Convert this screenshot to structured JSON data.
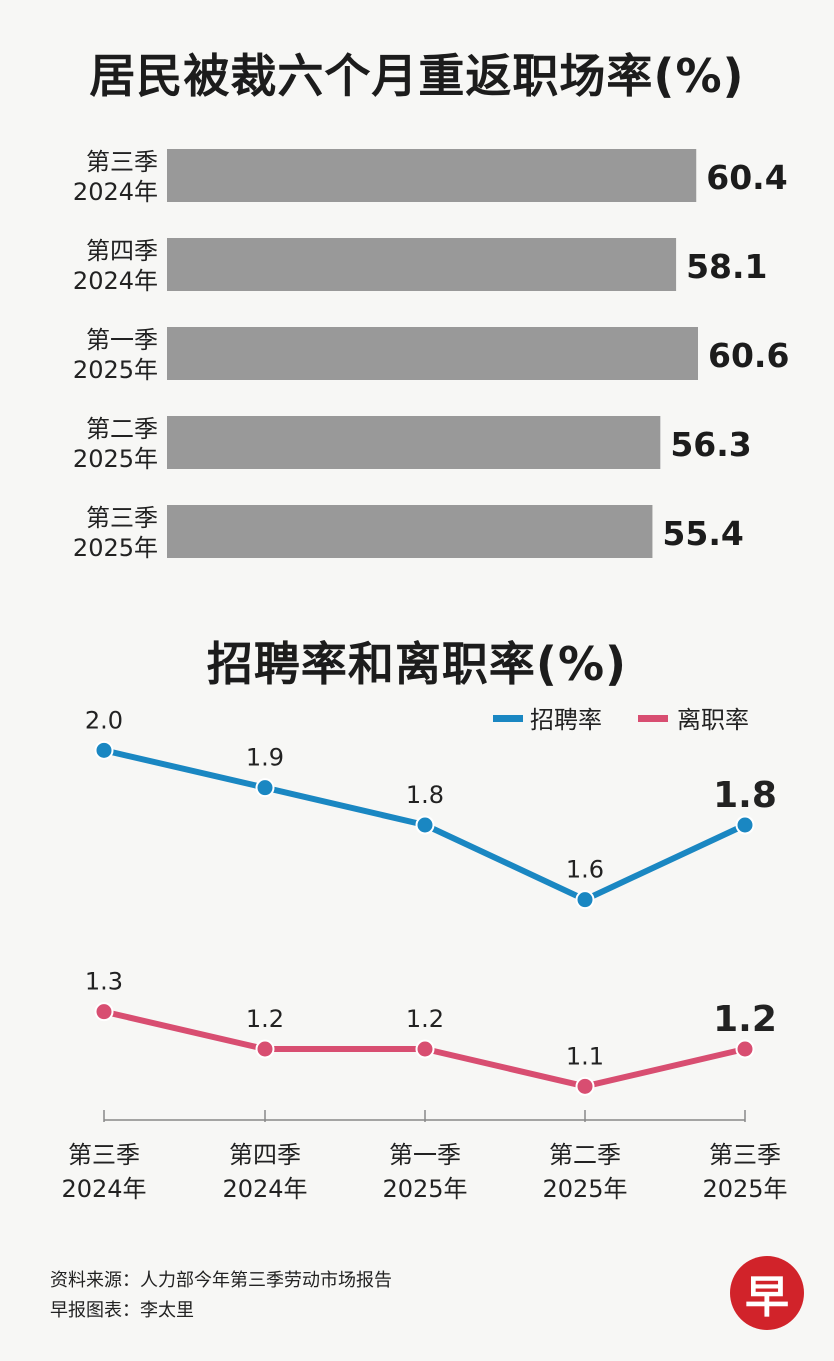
{
  "colors": {
    "bar": "#999999",
    "hire": "#1a87c2",
    "leave": "#d84e71",
    "axis": "#888888",
    "logo_bg": "#d1232a"
  },
  "chart_data": [
    {
      "type": "bar",
      "orientation": "horizontal",
      "title": "居民被裁六个月重返职场率(%)",
      "categories": [
        [
          "第三季",
          "2024年"
        ],
        [
          "第四季",
          "2024年"
        ],
        [
          "第一季",
          "2025年"
        ],
        [
          "第二季",
          "2025年"
        ],
        [
          "第三季",
          "2025年"
        ]
      ],
      "values": [
        60.4,
        58.1,
        60.6,
        56.3,
        55.4
      ],
      "value_labels": [
        "60.4",
        "58.1",
        "60.6",
        "56.3",
        "55.4"
      ],
      "xlim": [
        0,
        60.6
      ]
    },
    {
      "type": "line",
      "title": "招聘率和离职率(%)",
      "categories": [
        [
          "第三季",
          "2024年"
        ],
        [
          "第四季",
          "2024年"
        ],
        [
          "第一季",
          "2025年"
        ],
        [
          "第二季",
          "2025年"
        ],
        [
          "第三季",
          "2025年"
        ]
      ],
      "series": [
        {
          "name": "招聘率",
          "values": [
            2.0,
            1.9,
            1.8,
            1.6,
            1.8
          ],
          "labels": [
            "2.0",
            "1.9",
            "1.8",
            "1.6",
            "1.8"
          ]
        },
        {
          "name": "离职率",
          "values": [
            1.3,
            1.2,
            1.2,
            1.1,
            1.2
          ],
          "labels": [
            "1.3",
            "1.2",
            "1.2",
            "1.1",
            "1.2"
          ]
        }
      ],
      "legend": "top-right",
      "ylim": [
        1.0,
        2.1
      ]
    }
  ],
  "footer": {
    "source": "资料来源：人力部今年第三季劳动市场报告",
    "credit": "早报图表：李太里"
  },
  "logo": {
    "text": "早"
  }
}
